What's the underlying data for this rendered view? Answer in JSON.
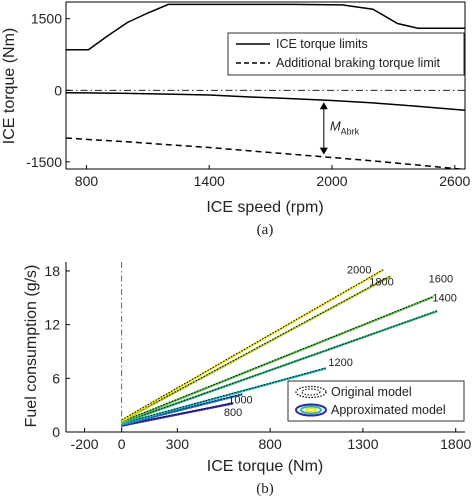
{
  "chart_data": [
    {
      "type": "line",
      "xlabel": "ICE speed (rpm)",
      "ylabel": "ICE torque (Nm)",
      "xlim": [
        700,
        2650
      ],
      "ylim": [
        -1650,
        1850
      ],
      "xticks": [
        800,
        1400,
        2000,
        2600
      ],
      "yticks": [
        -1500,
        0,
        1500
      ],
      "caption": "(a)",
      "grid": false,
      "legend_position": "top-right",
      "annotation": {
        "label": "M",
        "subscript": "Abrk",
        "x": 1960,
        "y_top": -250,
        "y_bottom": -1350
      },
      "series": [
        {
          "name": "ICE torque limits",
          "style": "solid",
          "x": [
            700,
            810,
            900,
            1000,
            1100,
            1200,
            1800,
            2050,
            2200,
            2320,
            2420,
            2650
          ],
          "y": [
            850,
            850,
            1130,
            1420,
            1620,
            1800,
            1800,
            1790,
            1700,
            1400,
            1300,
            1300
          ]
        },
        {
          "name": "",
          "style": "solid",
          "x": [
            700,
            800,
            1000,
            1200,
            1400,
            1600,
            1800,
            2000,
            2200,
            2400,
            2650
          ],
          "y": [
            -50,
            -55,
            -65,
            -80,
            -100,
            -140,
            -175,
            -215,
            -265,
            -330,
            -420
          ]
        },
        {
          "name": "Additional braking torque limit",
          "style": "dashed",
          "x": [
            700,
            800,
            1000,
            1200,
            1400,
            1600,
            1800,
            2000,
            2200,
            2400,
            2650
          ],
          "y": [
            -1000,
            -1030,
            -1080,
            -1140,
            -1200,
            -1270,
            -1340,
            -1410,
            -1480,
            -1560,
            -1660
          ]
        },
        {
          "name": "",
          "style": "dashdot",
          "x": [
            700,
            2650
          ],
          "y": [
            0,
            0
          ]
        }
      ]
    },
    {
      "type": "line",
      "xlabel": "ICE torque (Nm)",
      "ylabel": "Fuel consumption (g/s)",
      "xlim": [
        -300,
        1850
      ],
      "ylim": [
        0,
        19
      ],
      "xticks": [
        -200,
        0,
        300,
        800,
        1300,
        1800
      ],
      "yticks": [
        0,
        6,
        12,
        18
      ],
      "caption": "(b)",
      "grid": false,
      "legend_position": "bottom-right",
      "legend": [
        "Original model",
        "Approximated model"
      ],
      "series": [
        {
          "name": "800",
          "color": "#3b2fa8",
          "x": [
            0,
            600
          ],
          "y": [
            0.7,
            3.2
          ],
          "label_at": [
            600,
            1.8
          ]
        },
        {
          "name": "1000",
          "color": "#1e7ad4",
          "x": [
            0,
            650
          ],
          "y": [
            0.8,
            4.2
          ],
          "label_at": [
            640,
            3.2
          ]
        },
        {
          "name": "1200",
          "color": "#1ab5b5",
          "x": [
            0,
            1100
          ],
          "y": [
            0.9,
            7.1
          ],
          "label_at": [
            1180,
            7.4
          ]
        },
        {
          "name": "1400",
          "color": "#30b57a",
          "x": [
            0,
            1700
          ],
          "y": [
            1.0,
            13.5
          ],
          "label_at": [
            1740,
            14.6
          ]
        },
        {
          "name": "1600",
          "color": "#5ec04a",
          "x": [
            0,
            1680
          ],
          "y": [
            1.1,
            15.1
          ],
          "label_at": [
            1720,
            16.7
          ]
        },
        {
          "name": "1800",
          "color": "#b8cf2c",
          "x": [
            0,
            1450
          ],
          "y": [
            1.2,
            17.4
          ],
          "label_at": [
            1400,
            16.4
          ]
        },
        {
          "name": "2000",
          "color": "#efe622",
          "x": [
            0,
            1410
          ],
          "y": [
            1.3,
            18.1
          ],
          "label_at": [
            1280,
            17.7
          ]
        }
      ],
      "reference_line": {
        "x": 0,
        "style": "dashdot"
      }
    }
  ]
}
